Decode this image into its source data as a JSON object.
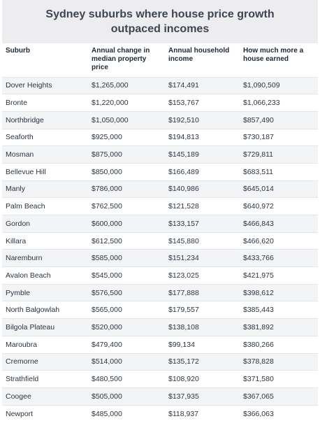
{
  "title": "Sydney suburbs where house price growth outpaced incomes",
  "columns": [
    "Suburb",
    "Annual change in median property price",
    "Annual household income",
    "How much more a house earned"
  ],
  "rows": [
    [
      "Dover Heights",
      "$1,265,000",
      "$174,491",
      "$1,090,509"
    ],
    [
      "Bronte",
      "$1,220,000",
      "$153,767",
      "$1,066,233"
    ],
    [
      "Northbridge",
      "$1,050,000",
      "$192,510",
      "$857,490"
    ],
    [
      "Seaforth",
      "$925,000",
      "$194,813",
      "$730,187"
    ],
    [
      "Mosman",
      "$875,000",
      "$145,189",
      "$729,811"
    ],
    [
      "Bellevue Hill",
      "$850,000",
      "$166,489",
      "$683,511"
    ],
    [
      "Manly",
      "$786,000",
      "$140,986",
      "$645,014"
    ],
    [
      "Palm Beach",
      "$762,500",
      "$121,528",
      "$640,972"
    ],
    [
      "Gordon",
      "$600,000",
      "$133,157",
      "$466,843"
    ],
    [
      "Killara",
      "$612,500",
      "$145,880",
      "$466,620"
    ],
    [
      "Naremburn",
      "$585,000",
      "$151,234",
      "$433,766"
    ],
    [
      "Avalon Beach",
      "$545,000",
      "$123,025",
      "$421,975"
    ],
    [
      "Pymble",
      "$576,500",
      "$177,888",
      "$398,612"
    ],
    [
      "North Balgowlah",
      "$565,000",
      "$179,557",
      "$385,443"
    ],
    [
      "Bilgola Plateau",
      "$520,000",
      "$138,108",
      "$381,892"
    ],
    [
      "Maroubra",
      "$479,400",
      "$99,134",
      "$380,266"
    ],
    [
      "Cremorne",
      "$514,000",
      "$135,172",
      "$378,828"
    ],
    [
      "Strathfield",
      "$480,500",
      "$108,920",
      "$371,580"
    ],
    [
      "Coogee",
      "$505,000",
      "$137,935",
      "$367,065"
    ],
    [
      "Newport",
      "$485,000",
      "$118,937",
      "$366,063"
    ]
  ]
}
